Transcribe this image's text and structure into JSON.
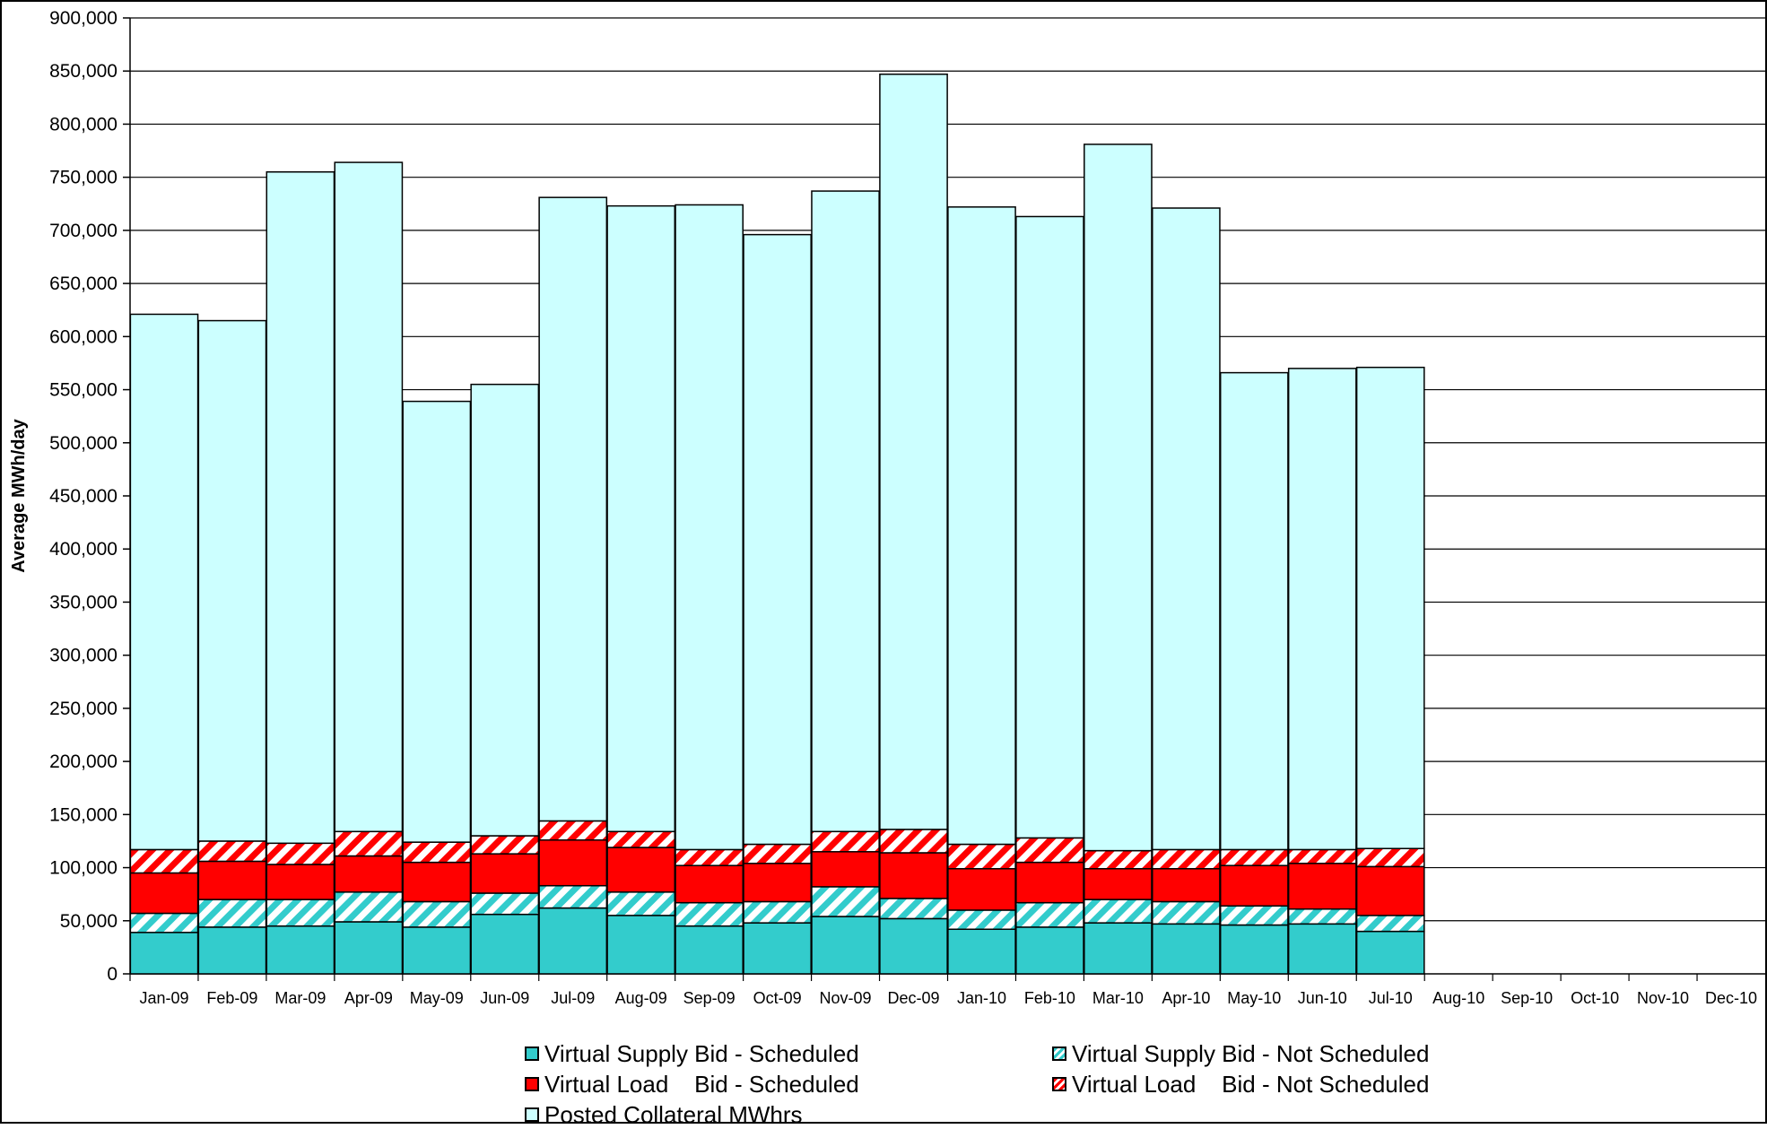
{
  "chart_data": {
    "type": "bar",
    "stacked": true,
    "title": "",
    "xlabel": "",
    "ylabel": "Average MWh/day",
    "ylim": [
      0,
      900000
    ],
    "ytick_step": 50000,
    "ytick_labels": [
      "0",
      "50,000",
      "100,000",
      "150,000",
      "200,000",
      "250,000",
      "300,000",
      "350,000",
      "400,000",
      "450,000",
      "500,000",
      "550,000",
      "600,000",
      "650,000",
      "700,000",
      "750,000",
      "800,000",
      "850,000",
      "900,000"
    ],
    "grid": true,
    "legend_position": "bottom",
    "categories": [
      "Jan-09",
      "Feb-09",
      "Mar-09",
      "Apr-09",
      "May-09",
      "Jun-09",
      "Jul-09",
      "Aug-09",
      "Sep-09",
      "Oct-09",
      "Nov-09",
      "Dec-09",
      "Jan-10",
      "Feb-10",
      "Mar-10",
      "Apr-10",
      "May-10",
      "Jun-10",
      "Jul-10",
      "Aug-10",
      "Sep-10",
      "Oct-10",
      "Nov-10",
      "Dec-10"
    ],
    "series": [
      {
        "name": "Virtual Supply Bid - Scheduled",
        "color": "#33cccc",
        "pattern": "solid",
        "values": [
          39000,
          44000,
          45000,
          49000,
          44000,
          56000,
          62000,
          55000,
          45000,
          48000,
          54000,
          52000,
          42000,
          44000,
          48000,
          47000,
          46000,
          47000,
          40000,
          null,
          null,
          null,
          null,
          null
        ]
      },
      {
        "name": "Virtual Supply Bid - Not Scheduled",
        "color": "#33cccc",
        "pattern": "hatch",
        "values": [
          18000,
          26000,
          25000,
          28000,
          24000,
          20000,
          21000,
          22000,
          22000,
          20000,
          28000,
          19000,
          18000,
          23000,
          22000,
          21000,
          18000,
          14000,
          15000,
          null,
          null,
          null,
          null,
          null
        ]
      },
      {
        "name": "Virtual Load    Bid - Scheduled",
        "color": "#ff0000",
        "pattern": "solid",
        "values": [
          38000,
          36000,
          33000,
          34000,
          37000,
          37000,
          43000,
          42000,
          35000,
          36000,
          33000,
          43000,
          39000,
          38000,
          29000,
          31000,
          38000,
          43000,
          46000,
          null,
          null,
          null,
          null,
          null
        ]
      },
      {
        "name": "Virtual Load    Bid - Not Scheduled",
        "color": "#ff0000",
        "pattern": "hatch",
        "values": [
          22000,
          19000,
          20000,
          23000,
          19000,
          17000,
          18000,
          15000,
          15000,
          18000,
          19000,
          22000,
          23000,
          23000,
          17000,
          18000,
          15000,
          13000,
          17000,
          null,
          null,
          null,
          null,
          null
        ]
      },
      {
        "name": "Posted Collateral MWhrs",
        "color": "#ccffff",
        "pattern": "solid",
        "values": [
          504000,
          490000,
          632000,
          630000,
          415000,
          425000,
          587000,
          589000,
          607000,
          574000,
          603000,
          711000,
          600000,
          585000,
          665000,
          604000,
          449000,
          453000,
          453000,
          null,
          null,
          null,
          null,
          null
        ]
      }
    ]
  }
}
